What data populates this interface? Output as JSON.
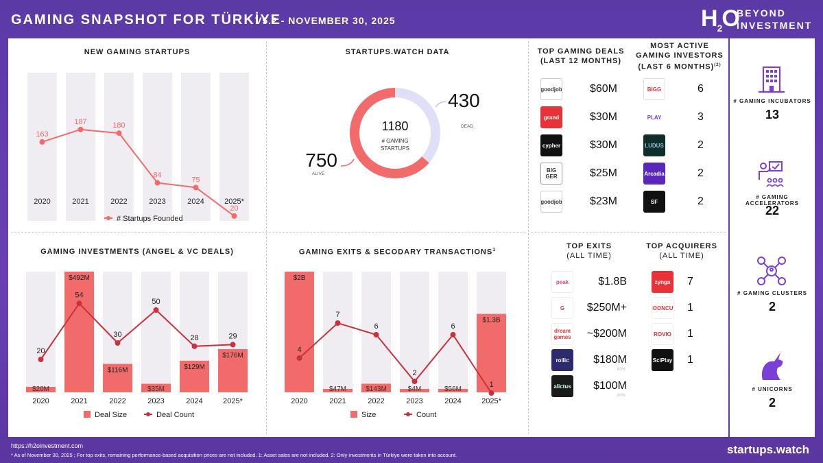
{
  "header": {
    "title": "GAMING SNAPSHOT FOR TÜRKİYE",
    "subtitle": "V5.2 - NOVEMBER 30, 2025",
    "logo_h": "H",
    "logo_2": "2",
    "logo_o": "O",
    "logo_line1": "BEYOND",
    "logo_line2": "INVESTMENT"
  },
  "colors": {
    "coral": "#f26b6b",
    "dark_red": "#c8323c",
    "bar_bg": "#efedf1",
    "dead": "#e0dff7",
    "purple": "#7b3fd6"
  },
  "startups_chart": {
    "title": "NEW GAMING STARTUPS",
    "legend": "# Startups Founded"
  },
  "donut": {
    "title": "STARTUPS.WATCH DATA",
    "total": "1180",
    "total_label1": "# GAMING",
    "total_label2": "STARTUPS",
    "alive_value": "750",
    "alive_label": "ALIVE",
    "dead_value": "430",
    "dead_label": "DEAD"
  },
  "investments_chart": {
    "title": "GAMING INVESTMENTS (ANGEL & VC DEALS)",
    "legend_size": "Deal Size",
    "legend_count": "Deal Count"
  },
  "exits_chart": {
    "title": "GAMING EXITS & SECODARY TRANSACTIONS",
    "title_sup": "1",
    "legend_size": "Size",
    "legend_count": "Count"
  },
  "chart_data": [
    {
      "type": "line",
      "title": "NEW GAMING STARTUPS",
      "categories": [
        "2020",
        "2021",
        "2022",
        "2023",
        "2024",
        "2025*"
      ],
      "series": [
        {
          "name": "# Startups Founded",
          "values": [
            163,
            187,
            180,
            84,
            75,
            20
          ]
        }
      ]
    },
    {
      "type": "pie",
      "title": "STARTUPS.WATCH DATA",
      "categories": [
        "ALIVE",
        "DEAD"
      ],
      "values": [
        750,
        430
      ],
      "total": 1180
    },
    {
      "type": "bar",
      "title": "GAMING INVESTMENTS (ANGEL & VC DEALS)",
      "categories": [
        "2020",
        "2021",
        "2022",
        "2023",
        "2024",
        "2025*"
      ],
      "series": [
        {
          "name": "Deal Size",
          "values": [
            20,
            492,
            116,
            35,
            129,
            176
          ],
          "labels": [
            "$20M",
            "$492M",
            "$116M",
            "$35M",
            "$129M",
            "$176M"
          ]
        },
        {
          "name": "Deal Count",
          "values": [
            20,
            54,
            30,
            50,
            28,
            29
          ]
        }
      ]
    },
    {
      "type": "bar",
      "title": "GAMING EXITS & SECODARY TRANSACTIONS",
      "categories": [
        "2020",
        "2021",
        "2022",
        "2023",
        "2024",
        "2025*"
      ],
      "series": [
        {
          "name": "Size",
          "values": [
            2000,
            47,
            143,
            4,
            56,
            1300
          ],
          "labels": [
            "$2B",
            "$47M",
            "$143M",
            "$4M",
            "$56M",
            "$1.3B"
          ]
        },
        {
          "name": "Count",
          "values": [
            4,
            7,
            6,
            2,
            6,
            1
          ]
        }
      ]
    }
  ],
  "deals": {
    "title1": "TOP GAMING DEALS",
    "title2": "(LAST 12 MONTHS)",
    "items": [
      {
        "logo": "goodjob",
        "amount": "$60M"
      },
      {
        "logo": "grand",
        "amount": "$30M"
      },
      {
        "logo": "cypher",
        "amount": "$30M"
      },
      {
        "logo": "BIG GER",
        "amount": "$25M"
      },
      {
        "logo": "goodjob",
        "amount": "$23M"
      }
    ]
  },
  "investors": {
    "title1": "MOST ACTIVE",
    "title2": "GAMING INVESTORS",
    "title3": "(LAST 6 MONTHS)",
    "title_sup": "(2)",
    "items": [
      {
        "logo": "BIGG",
        "count": "6"
      },
      {
        "logo": "PLAY",
        "count": "3"
      },
      {
        "logo": "LUDUS",
        "count": "2"
      },
      {
        "logo": "Arcadia",
        "count": "2"
      },
      {
        "logo": "SF",
        "count": "2"
      }
    ]
  },
  "exits": {
    "title1": "TOP EXITS",
    "title2": "(ALL TIME)",
    "items": [
      {
        "logo": "peak",
        "amount": "$1.8B",
        "note": ""
      },
      {
        "logo": "G",
        "amount": "$250M+",
        "note": ""
      },
      {
        "logo": "dream games",
        "amount": "~$200M",
        "note": ""
      },
      {
        "logo": "rollic",
        "amount": "$180M",
        "note": "80%"
      },
      {
        "logo": "alictus",
        "amount": "$100M",
        "note": "80%"
      }
    ]
  },
  "acquirers": {
    "title1": "TOP ACQUIRERS",
    "title2": "(ALL TIME)",
    "items": [
      {
        "logo": "zynga",
        "count": "7"
      },
      {
        "logo": "MOONCUP",
        "count": "1"
      },
      {
        "logo": "ROVIO",
        "count": "1"
      },
      {
        "logo": "SciPlay",
        "count": "1"
      }
    ]
  },
  "sidebar": {
    "incubators_label": "# GAMING INCUBATORS",
    "incubators_value": "13",
    "accelerators_label": "# GAMING ACCELERATORS",
    "accelerators_value": "22",
    "clusters_label": "# GAMING CLUSTERS",
    "clusters_value": "2",
    "unicorns_label": "# UNICORNS",
    "unicorns_value": "2"
  },
  "footer": {
    "url": "https://h2oinvestment.com",
    "note": "* As of November 30, 2025 ; For top exits, remaining performance-based acquisition prices are not included. 1: Asset sales are not included. 2: Only investments in Türkiye were taken into account.",
    "brand": "startups.watch"
  }
}
